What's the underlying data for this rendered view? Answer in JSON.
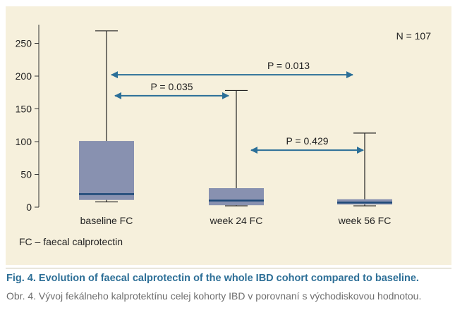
{
  "chart_data": {
    "type": "box",
    "ylim": [
      0,
      275
    ],
    "yticks": [
      0,
      50,
      100,
      150,
      200,
      250
    ],
    "categories": [
      "baseline FC",
      "week 24 FC",
      "week 56 FC"
    ],
    "boxes": [
      {
        "min": 8,
        "q1": 11,
        "median": 20,
        "q3": 101,
        "max": 269
      },
      {
        "min": 2,
        "q1": 3,
        "median": 10,
        "q3": 29,
        "max": 178
      },
      {
        "min": 2,
        "q1": 4,
        "median": 7,
        "q3": 12,
        "max": 113
      }
    ],
    "comparisons": [
      {
        "from": 0,
        "to": 2,
        "label": "P = 0.013",
        "y": 202
      },
      {
        "from": 0,
        "to": 1,
        "label": "P = 0.035",
        "y": 170
      },
      {
        "from": 1,
        "to": 2,
        "label": "P = 0.429",
        "y": 87
      }
    ],
    "annotation": "N = 107",
    "box_color": "#8891b0",
    "median_color": "#1f4a78",
    "arrow_color": "#2b6f98"
  },
  "footnote": "FC – faecal calprotectin",
  "caption_en": "Fig. 4. Evolution of faecal calprotectin of the whole IBD cohort compared to baseline.",
  "caption_cz": "Obr. 4. Vývoj fekálneho kalprotektínu celej kohorty IBD v porovnaní s východiskovou hodnotou."
}
